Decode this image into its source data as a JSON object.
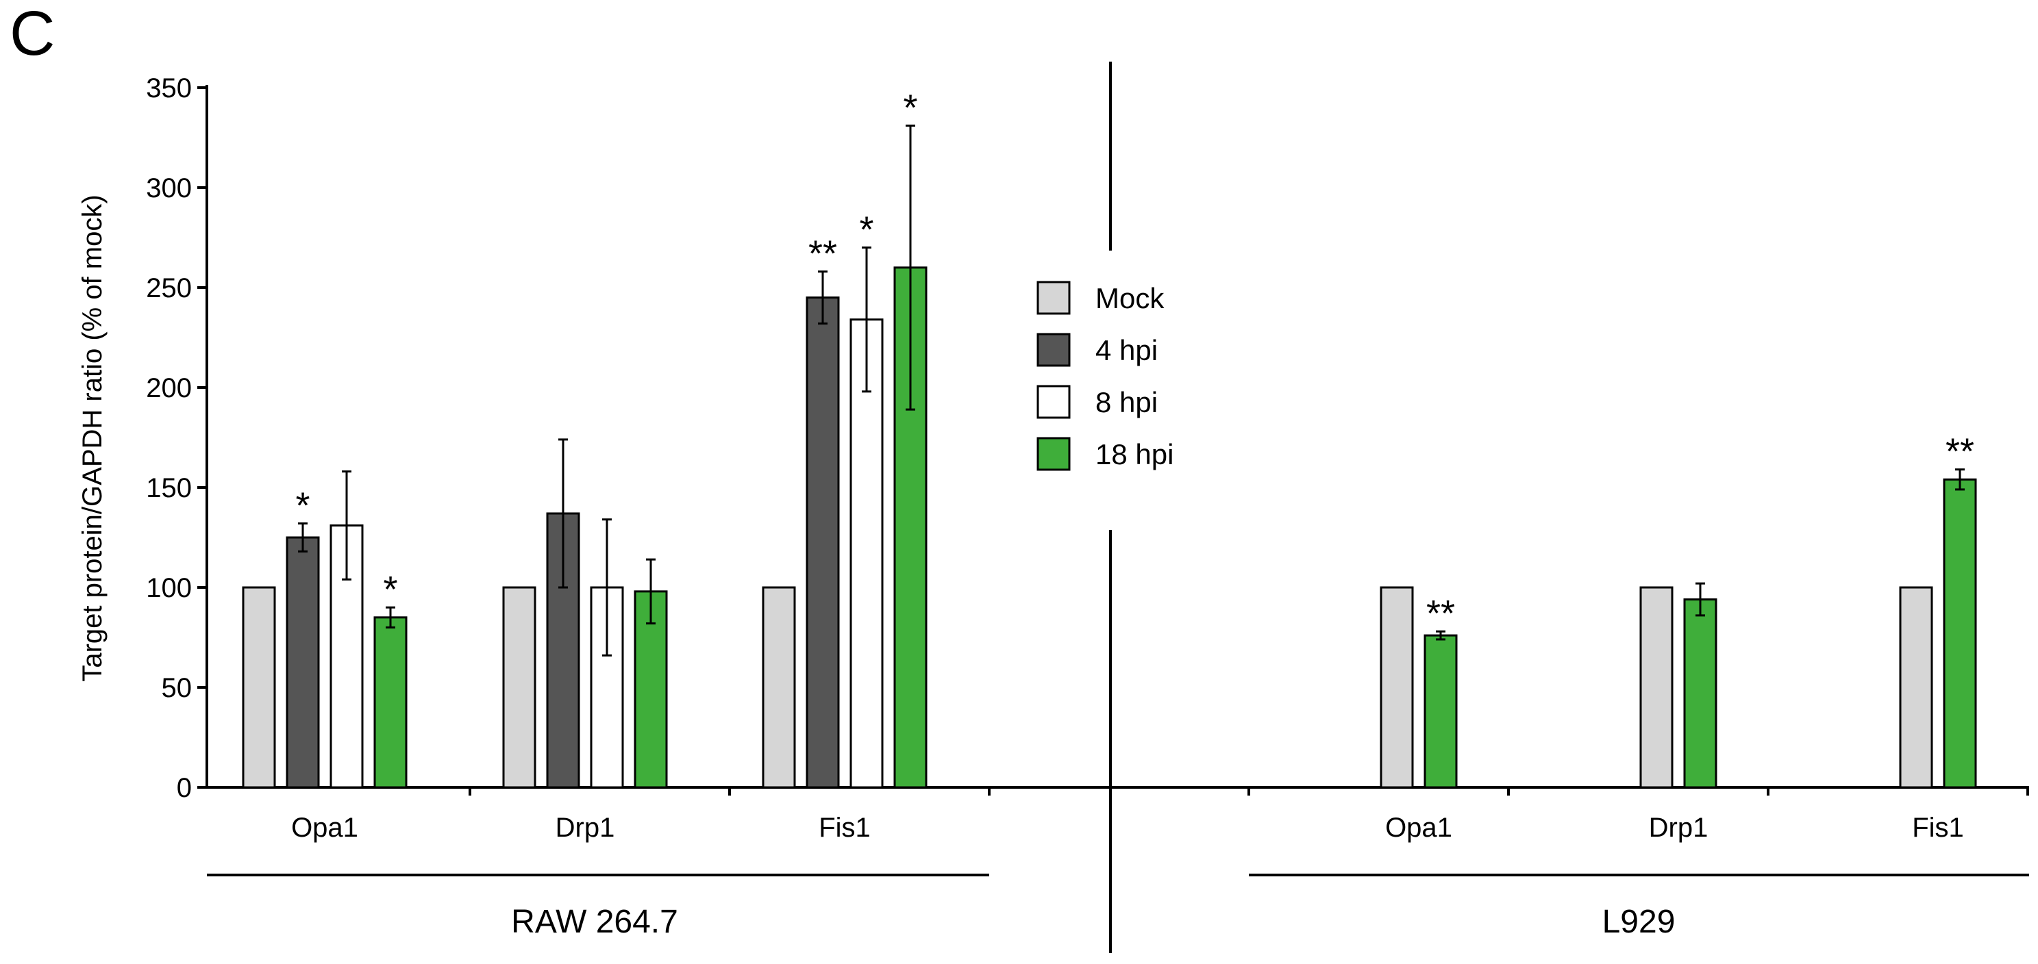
{
  "panel_label": "C",
  "chart_data": {
    "type": "bar",
    "ylabel": "Target protein/GAPDH ratio (% of mock)",
    "ylim": [
      0,
      350
    ],
    "yticks": [
      0,
      50,
      100,
      150,
      200,
      250,
      300,
      350
    ],
    "series_colors": {
      "Mock": "#d6d6d6",
      "4 hpi": "#555555",
      "8 hpi": "#ffffff",
      "18 hpi": "#3fae3a"
    },
    "legend": [
      "Mock",
      "4 hpi",
      "8 hpi",
      "18 hpi"
    ],
    "legend_position": "center",
    "groups": [
      {
        "name": "RAW 264.7",
        "categories": [
          {
            "name": "Opa1",
            "bars": [
              {
                "series": "Mock",
                "value": 100,
                "error": 0,
                "sig": ""
              },
              {
                "series": "4 hpi",
                "value": 125,
                "error": 7,
                "sig": "*"
              },
              {
                "series": "8 hpi",
                "value": 131,
                "error": 27,
                "sig": ""
              },
              {
                "series": "18 hpi",
                "value": 85,
                "error": 5,
                "sig": "*"
              }
            ]
          },
          {
            "name": "Drp1",
            "bars": [
              {
                "series": "Mock",
                "value": 100,
                "error": 0,
                "sig": ""
              },
              {
                "series": "4 hpi",
                "value": 137,
                "error": 37,
                "sig": ""
              },
              {
                "series": "8 hpi",
                "value": 100,
                "error": 34,
                "sig": ""
              },
              {
                "series": "18 hpi",
                "value": 98,
                "error": 16,
                "sig": ""
              }
            ]
          },
          {
            "name": "Fis1",
            "bars": [
              {
                "series": "Mock",
                "value": 100,
                "error": 0,
                "sig": ""
              },
              {
                "series": "4 hpi",
                "value": 245,
                "error": 13,
                "sig": "**"
              },
              {
                "series": "8 hpi",
                "value": 234,
                "error": 36,
                "sig": "*"
              },
              {
                "series": "18 hpi",
                "value": 260,
                "error": 71,
                "sig": "*"
              }
            ]
          }
        ]
      },
      {
        "name": "L929",
        "categories": [
          {
            "name": "Opa1",
            "bars": [
              {
                "series": "Mock",
                "value": 100,
                "error": 0,
                "sig": ""
              },
              {
                "series": "18 hpi",
                "value": 76,
                "error": 2,
                "sig": "**"
              }
            ]
          },
          {
            "name": "Drp1",
            "bars": [
              {
                "series": "Mock",
                "value": 100,
                "error": 0,
                "sig": ""
              },
              {
                "series": "18 hpi",
                "value": 94,
                "error": 8,
                "sig": ""
              }
            ]
          },
          {
            "name": "Fis1",
            "bars": [
              {
                "series": "Mock",
                "value": 100,
                "error": 0,
                "sig": ""
              },
              {
                "series": "18 hpi",
                "value": 154,
                "error": 5,
                "sig": "**"
              }
            ]
          }
        ]
      }
    ]
  }
}
